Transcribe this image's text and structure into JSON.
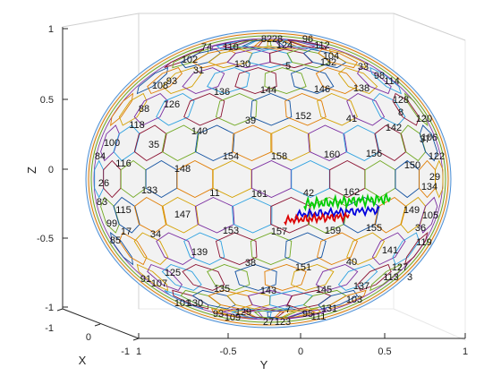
{
  "chart_data": {
    "type": "scatter",
    "title": "",
    "xlabel": "X",
    "ylabel": "Y",
    "zlabel": "Z",
    "xlim": [
      -1,
      1
    ],
    "ylim": [
      -1,
      1
    ],
    "zlim": [
      -1,
      1
    ],
    "grid": "on",
    "z_ticks": [
      "1",
      "0.5",
      "0",
      "-0.5",
      "-1"
    ],
    "y_ticks": [
      "-1",
      "-0.5",
      "0",
      "0.5",
      "1"
    ],
    "x_ticks": [
      "1",
      "0",
      "-1"
    ],
    "sphere_cells": {
      "description_values": [
        "82",
        "28",
        "96",
        "124",
        "112",
        "74",
        "110",
        "104",
        "102",
        "31",
        "130",
        "5",
        "132",
        "33",
        "98",
        "93",
        "108",
        "136",
        "144",
        "146",
        "138",
        "114",
        "128",
        "8",
        "126",
        "39",
        "152",
        "41",
        "88",
        "120",
        "118",
        "140",
        "142",
        "37",
        "106",
        "100",
        "35",
        "154",
        "158",
        "160",
        "156",
        "150",
        "122",
        "84",
        "116",
        "148",
        "29",
        "26",
        "133",
        "11",
        "161",
        "42",
        "162",
        "134",
        "83",
        "99",
        "115",
        "147",
        "153",
        "157",
        "159",
        "155",
        "149",
        "105",
        "36",
        "119",
        "34",
        "17",
        "139",
        "141",
        "127",
        "85",
        "125",
        "38",
        "151",
        "40",
        "3",
        "113",
        "91",
        "107",
        "135",
        "143",
        "145",
        "137",
        "101",
        "130b",
        "93b",
        "109",
        "129",
        "7",
        "131",
        "103",
        "27",
        "123",
        "95",
        "111"
      ],
      "labels": [
        {
          "t": "82"
        },
        {
          "t": "28"
        },
        {
          "t": "96"
        },
        {
          "t": "124"
        },
        {
          "t": "112"
        },
        {
          "t": "74"
        },
        {
          "t": "110"
        },
        {
          "t": "104"
        },
        {
          "t": "102"
        },
        {
          "t": "31"
        },
        {
          "t": "130"
        },
        {
          "t": "5"
        },
        {
          "t": "132"
        },
        {
          "t": "33"
        },
        {
          "t": "98"
        },
        {
          "t": "93"
        },
        {
          "t": "108"
        },
        {
          "t": "136"
        },
        {
          "t": "144"
        },
        {
          "t": "146"
        },
        {
          "t": "138"
        },
        {
          "t": "114"
        },
        {
          "t": "128"
        },
        {
          "t": "8"
        },
        {
          "t": "126"
        },
        {
          "t": "39"
        },
        {
          "t": "152"
        },
        {
          "t": "41"
        },
        {
          "t": "88"
        },
        {
          "t": "120"
        },
        {
          "t": "118"
        },
        {
          "t": "140"
        },
        {
          "t": "142"
        },
        {
          "t": "37"
        },
        {
          "t": "106"
        },
        {
          "t": "100"
        },
        {
          "t": "35"
        },
        {
          "t": "154"
        },
        {
          "t": "158"
        },
        {
          "t": "160"
        },
        {
          "t": "156"
        },
        {
          "t": "150"
        },
        {
          "t": "122"
        },
        {
          "t": "84"
        },
        {
          "t": "116"
        },
        {
          "t": "148"
        },
        {
          "t": "29"
        },
        {
          "t": "26"
        },
        {
          "t": "133"
        },
        {
          "t": "11"
        },
        {
          "t": "161"
        },
        {
          "t": "42"
        },
        {
          "t": "162"
        },
        {
          "t": "134"
        },
        {
          "t": "83"
        },
        {
          "t": "99"
        },
        {
          "t": "115"
        },
        {
          "t": "147"
        },
        {
          "t": "153"
        },
        {
          "t": "157"
        },
        {
          "t": "159"
        },
        {
          "t": "155"
        },
        {
          "t": "149"
        },
        {
          "t": "105"
        },
        {
          "t": "36"
        },
        {
          "t": "119"
        },
        {
          "t": "34"
        },
        {
          "t": "17"
        },
        {
          "t": "139"
        },
        {
          "t": "141"
        },
        {
          "t": "127"
        },
        {
          "t": "85"
        },
        {
          "t": "125"
        },
        {
          "t": "38"
        },
        {
          "t": "151"
        },
        {
          "t": "40"
        },
        {
          "t": "3"
        },
        {
          "t": "113"
        },
        {
          "t": "91"
        },
        {
          "t": "107"
        },
        {
          "t": "135"
        },
        {
          "t": "143"
        },
        {
          "t": "145"
        },
        {
          "t": "137"
        },
        {
          "t": "101"
        },
        {
          "t": "130"
        },
        {
          "t": "93"
        },
        {
          "t": "109"
        },
        {
          "t": "129"
        },
        {
          "t": "7"
        },
        {
          "t": "131"
        },
        {
          "t": "103"
        },
        {
          "t": "27"
        },
        {
          "t": "123"
        },
        {
          "t": "95"
        },
        {
          "t": "111"
        }
      ]
    },
    "series": [
      {
        "color": "#00cc00"
      },
      {
        "color": "#0000dd"
      },
      {
        "color": "#dd0000"
      }
    ]
  },
  "colors": {
    "cell_edges": [
      "#e07b00",
      "#d4a000",
      "#7a2ca0",
      "#2aa0e0",
      "#8a1030",
      "#70a820",
      "#1050a0"
    ],
    "sphere_fill": "#f2f2f2",
    "frame": "#c8c8c8",
    "axis": "#262626"
  }
}
